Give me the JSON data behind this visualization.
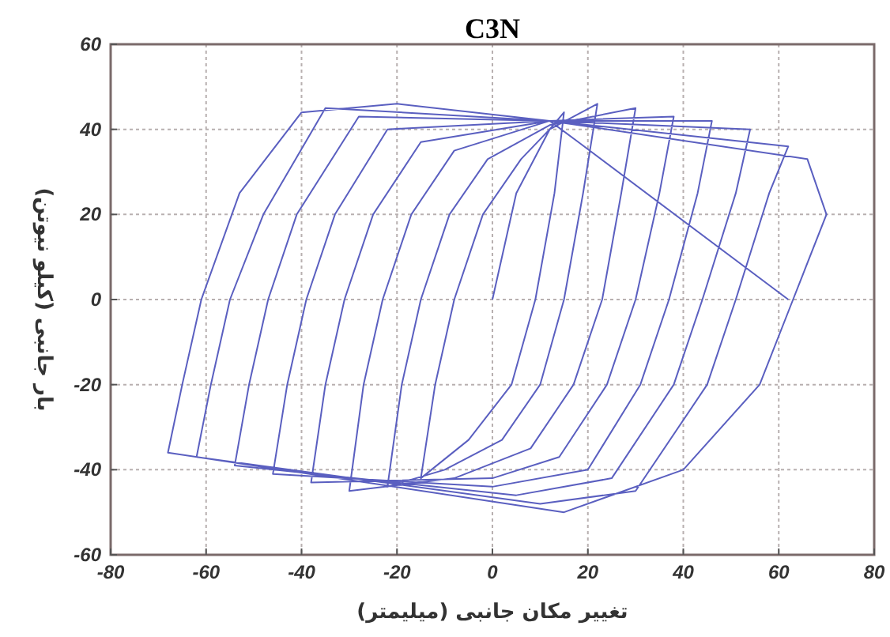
{
  "chart_data": {
    "type": "line",
    "title": "C3N",
    "xlabel": "تغییر مکان جانبی (میلیمتر)",
    "ylabel": "بار جانبی (کیلو نیوتن)",
    "xlim": [
      -80,
      80
    ],
    "ylim": [
      -60,
      60
    ],
    "xticks": [
      -80,
      -60,
      -40,
      -20,
      0,
      20,
      40,
      60,
      80
    ],
    "yticks": [
      -60,
      -40,
      -20,
      0,
      20,
      40,
      60
    ],
    "grid": true,
    "marker": "none",
    "line_style": "solid",
    "series": [
      {
        "color": "#5a5fc0",
        "x": [
          0,
          5,
          12,
          15,
          13,
          9,
          4,
          -5,
          -15,
          -12,
          -8,
          -2,
          6,
          12,
          22,
          19,
          15,
          10,
          2,
          -10,
          -22,
          -19,
          -15,
          -9,
          -1,
          12,
          30,
          27,
          23,
          17,
          8,
          -8,
          -30,
          -27,
          -23,
          -17,
          -8,
          12,
          38,
          35,
          30,
          24,
          14,
          0,
          -38,
          -35,
          -31,
          -25,
          -15,
          12,
          46,
          43,
          37,
          31,
          20,
          0,
          -46,
          -43,
          -39,
          -33,
          -22,
          12,
          54,
          51,
          44,
          38,
          25,
          5,
          -54,
          -51,
          -47,
          -41,
          -28,
          12,
          62,
          58,
          51,
          45,
          30,
          10,
          -62,
          -59,
          -55,
          -48,
          -35,
          12,
          66,
          70,
          63,
          56,
          40,
          15,
          -68,
          -65,
          -61,
          -53,
          -40,
          -20,
          12,
          18,
          62
        ],
        "values": [
          0,
          25,
          40,
          44,
          25,
          0,
          -20,
          -33,
          -42,
          -20,
          0,
          20,
          33,
          40,
          46,
          25,
          0,
          -20,
          -33,
          -40,
          -44,
          -20,
          0,
          20,
          33,
          41,
          45,
          25,
          0,
          -20,
          -35,
          -42,
          -45,
          -20,
          0,
          20,
          35,
          42,
          43,
          25,
          0,
          -20,
          -37,
          -42,
          -43,
          -20,
          0,
          20,
          37,
          42,
          42,
          25,
          0,
          -20,
          -40,
          -44,
          -41,
          -20,
          0,
          20,
          40,
          42,
          40,
          25,
          0,
          -20,
          -42,
          -46,
          -39,
          -20,
          0,
          20,
          43,
          42,
          36,
          25,
          0,
          -20,
          -45,
          -48,
          -37,
          -20,
          0,
          20,
          45,
          42,
          33,
          20,
          0,
          -20,
          -40,
          -50,
          -36,
          -20,
          0,
          25,
          44,
          46,
          42,
          37,
          0
        ]
      }
    ]
  }
}
